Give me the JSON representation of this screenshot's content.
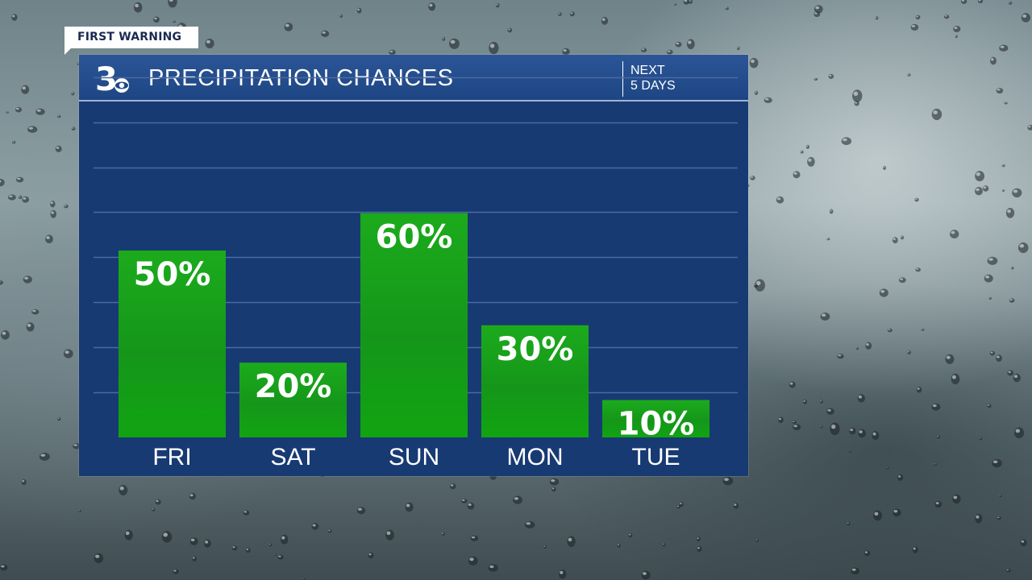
{
  "tag": {
    "label": "FIRST WARNING"
  },
  "header": {
    "title": "PRECIPITATION CHANCES",
    "next_line1": "NEXT",
    "next_line2": "5 DAYS",
    "logo_number": "3"
  },
  "colors": {
    "panel": "#183a73",
    "header": "#254e8e",
    "bar_top": "#1aa61a",
    "bar_bottom": "#0f8f0f",
    "gridline": "#4a6aa0",
    "text": "#ffffff"
  },
  "chart_data": {
    "type": "bar",
    "categories": [
      "FRI",
      "SAT",
      "SUN",
      "MON",
      "TUE"
    ],
    "values": [
      50,
      20,
      60,
      30,
      10
    ],
    "value_labels": [
      "50%",
      "20%",
      "60%",
      "30%",
      "10%"
    ],
    "ylim": [
      0,
      100
    ],
    "grid": true,
    "title": "PRECIPITATION CHANCES",
    "xlabel": "",
    "ylabel": ""
  }
}
